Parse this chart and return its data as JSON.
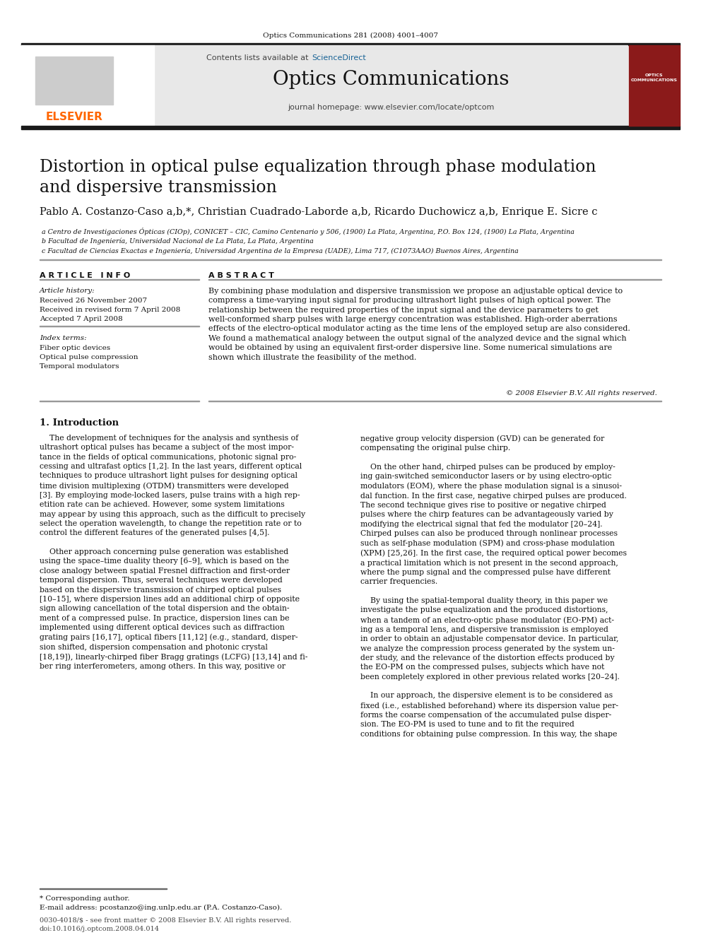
{
  "journal_ref": "Optics Communications 281 (2008) 4001–4007",
  "journal_name": "Optics Communications",
  "journal_homepage": "journal homepage: www.elsevier.com/locate/optcom",
  "thick_bar_color": "#1a1a1a",
  "header_bg": "#e8e8e8",
  "title": "Distortion in optical pulse equalization through phase modulation\nand dispersive transmission",
  "authors": "Pablo A. Costanzo-Caso a,b,*, Christian Cuadrado-Laborde a,b, Ricardo Duchowicz a,b, Enrique E. Sicre c",
  "affil_a": " a Centro de Investigaciones Ópticas (CIOp), CONICET – CIC, Camino Centenario y 506, (1900) La Plata, Argentina, P.O. Box 124, (1900) La Plata, Argentina",
  "affil_b": " b Facultad de Ingeniería, Universidad Nacional de La Plata, La Plata, Argentina",
  "affil_c": " c Facultad de Ciencias Exactas e Ingeniería, Universidad Argentina de la Empresa (UADE), Lima 717, (C1073AAO) Buenos Aires, Argentina",
  "article_info_label": "A R T I C L E   I N F O",
  "abstract_label": "A B S T R A C T",
  "article_history_label": "Article history:",
  "received1": "Received 26 November 2007",
  "received2": "Received in revised form 7 April 2008",
  "accepted": "Accepted 7 April 2008",
  "index_terms_label": "Index terms:",
  "index1": "Fiber optic devices",
  "index2": "Optical pulse compression",
  "index3": "Temporal modulators",
  "abstract_text": "By combining phase modulation and dispersive transmission we propose an adjustable optical device to\ncompress a time-varying input signal for producing ultrashort light pulses of high optical power. The\nrelationship between the required properties of the input signal and the device parameters to get\nwell-conformed sharp pulses with large energy concentration was established. High-order aberrations\neffects of the electro-optical modulator acting as the time lens of the employed setup are also considered.\nWe found a mathematical analogy between the output signal of the analyzed device and the signal which\nwould be obtained by using an equivalent first-order dispersive line. Some numerical simulations are\nshown which illustrate the feasibility of the method.",
  "copyright": "© 2008 Elsevier B.V. All rights reserved.",
  "section1_label": "1. Introduction",
  "intro_left_p1": "    The development of techniques for the analysis and synthesis of\nultrashort optical pulses has became a subject of the most impor-\ntance in the fields of optical communications, photonic signal pro-\ncessing and ultrafast optics [1,2]. In the last years, different optical\ntechniques to produce ultrashort light pulses for designing optical\ntime division multiplexing (OTDM) transmitters were developed\n[3]. By employing mode-locked lasers, pulse trains with a high rep-\netition rate can be achieved. However, some system limitations\nmay appear by using this approach, such as the difficult to precisely\nselect the operation wavelength, to change the repetition rate or to\ncontrol the different features of the generated pulses [4,5].",
  "intro_left_p2": "    Other approach concerning pulse generation was established\nusing the space–time duality theory [6–9], which is based on the\nclose analogy between spatial Fresnel diffraction and first-order\ntemporal dispersion. Thus, several techniques were developed\nbased on the dispersive transmission of chirped optical pulses\n[10–15], where dispersion lines add an additional chirp of opposite\nsign allowing cancellation of the total dispersion and the obtain-\nment of a compressed pulse. In practice, dispersion lines can be\nimplemented using different optical devices such as diffraction\ngrating pairs [16,17], optical fibers [11,12] (e.g., standard, disper-\nsion shifted, dispersion compensation and photonic crystal\n[18,19]), linearly-chirped fiber Bragg gratings (LCFG) [13,14] and fi-\nber ring interferometers, among others. In this way, positive or",
  "intro_right_p1": "negative group velocity dispersion (GVD) can be generated for\ncompensating the original pulse chirp.",
  "intro_right_p2": "    On the other hand, chirped pulses can be produced by employ-\ning gain-switched semiconductor lasers or by using electro-optic\nmodulators (EOM), where the phase modulation signal is a sinusoi-\ndal function. In the first case, negative chirped pulses are produced.\nThe second technique gives rise to positive or negative chirped\npulses where the chirp features can be advantageously varied by\nmodifying the electrical signal that fed the modulator [20–24].\nChirped pulses can also be produced through nonlinear processes\nsuch as self-phase modulation (SPM) and cross-phase modulation\n(XPM) [25,26]. In the first case, the required optical power becomes\na practical limitation which is not present in the second approach,\nwhere the pump signal and the compressed pulse have different\ncarrier frequencies.",
  "intro_right_p3": "    By using the spatial-temporal duality theory, in this paper we\ninvestigate the pulse equalization and the produced distortions,\nwhen a tandem of an electro-optic phase modulator (EO-PM) act-\ning as a temporal lens, and dispersive transmission is employed\nin order to obtain an adjustable compensator device. In particular,\nwe analyze the compression process generated by the system un-\nder study, and the relevance of the distortion effects produced by\nthe EO-PM on the compressed pulses, subjects which have not\nbeen completely explored in other previous related works [20–24].",
  "intro_right_p4": "    In our approach, the dispersive element is to be considered as\nfixed (i.e., established beforehand) where its dispersion value per-\nforms the coarse compensation of the accumulated pulse disper-\nsion. The EO-PM is used to tune and to fit the required\nconditions for obtaining pulse compression. In this way, the shape",
  "footnote_star": "* Corresponding author.",
  "footnote_email": "E-mail address: pcostanzo@ing.unlp.edu.ar (P.A. Costanzo-Caso).",
  "footer_issn": "0030-4018/$ - see front matter © 2008 Elsevier B.V. All rights reserved.",
  "footer_doi": "doi:10.1016/j.optcom.2008.04.014",
  "elsevier_color": "#ff6600",
  "sciencedirect_color": "#1a6496",
  "background_color": "#ffffff"
}
